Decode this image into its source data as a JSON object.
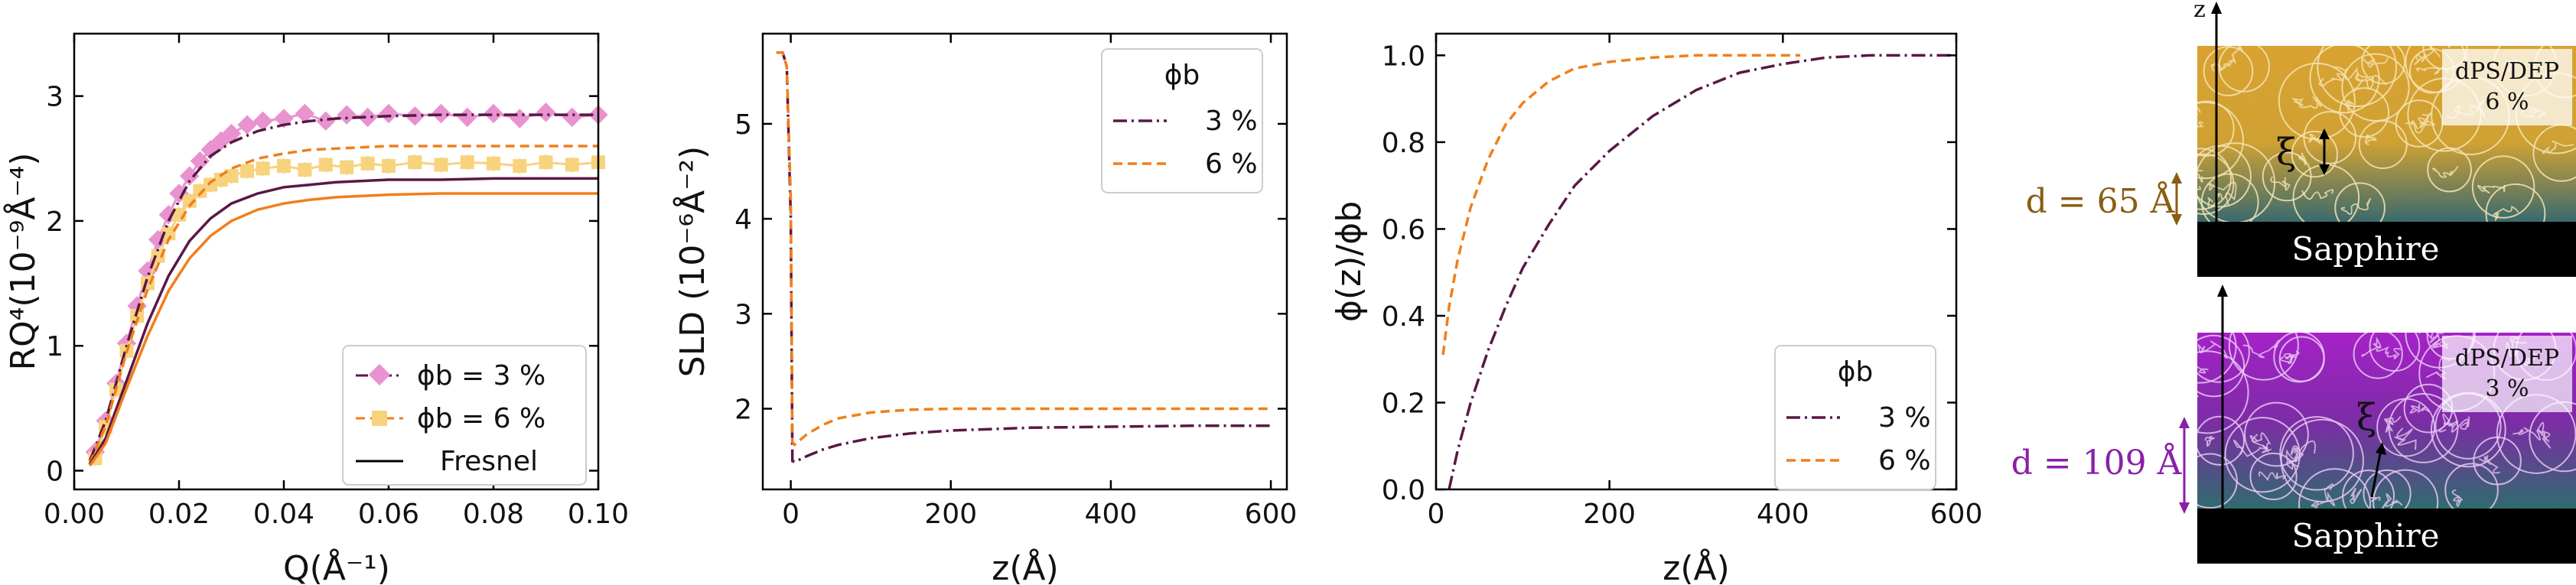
{
  "chart_data": [
    {
      "type": "scatter",
      "panel": "a",
      "xlabel": "Q(Å⁻¹)",
      "ylabel": "RQ⁴(10⁻⁹Å⁻⁴)",
      "xlim": [
        0.0,
        0.1
      ],
      "ylim": [
        -0.15,
        3.5
      ],
      "xticks": [
        "0.00",
        "0.02",
        "0.04",
        "0.06",
        "0.08",
        "0.10"
      ],
      "yticks": [
        "0",
        "1",
        "2",
        "3"
      ],
      "legend_position": "lower-right",
      "legend": [
        "ϕb = 3 %",
        "ϕb = 6 %",
        "Fresnel"
      ],
      "colors": {
        "pink_data": "#e893cf",
        "yellow_data": "#f7d37e",
        "purple": "#5a1846",
        "orange": "#f07f1c"
      },
      "series": [
        {
          "name": "ϕb = 3 %",
          "kind": "data",
          "x": [
            0.004,
            0.006,
            0.008,
            0.01,
            0.012,
            0.014,
            0.016,
            0.018,
            0.02,
            0.022,
            0.024,
            0.026,
            0.028,
            0.03,
            0.033,
            0.036,
            0.04,
            0.044,
            0.048,
            0.052,
            0.056,
            0.06,
            0.065,
            0.07,
            0.075,
            0.08,
            0.085,
            0.09,
            0.095,
            0.1
          ],
          "y": [
            0.15,
            0.4,
            0.7,
            1.02,
            1.32,
            1.6,
            1.85,
            2.05,
            2.22,
            2.36,
            2.48,
            2.57,
            2.64,
            2.7,
            2.77,
            2.8,
            2.82,
            2.86,
            2.8,
            2.85,
            2.83,
            2.86,
            2.84,
            2.86,
            2.83,
            2.86,
            2.82,
            2.87,
            2.83,
            2.85
          ]
        },
        {
          "name": "ϕb = 3 % fit",
          "kind": "fit",
          "x": [
            0.003,
            0.006,
            0.01,
            0.014,
            0.018,
            0.022,
            0.026,
            0.03,
            0.035,
            0.04,
            0.045,
            0.05,
            0.06,
            0.07,
            0.08,
            0.09,
            0.1
          ],
          "y": [
            0.08,
            0.4,
            1.0,
            1.55,
            2.0,
            2.32,
            2.52,
            2.63,
            2.72,
            2.77,
            2.8,
            2.82,
            2.84,
            2.85,
            2.85,
            2.85,
            2.85
          ]
        },
        {
          "name": "ϕb = 6 %",
          "kind": "data",
          "x": [
            0.004,
            0.006,
            0.008,
            0.01,
            0.012,
            0.014,
            0.016,
            0.018,
            0.02,
            0.022,
            0.024,
            0.026,
            0.028,
            0.03,
            0.033,
            0.036,
            0.04,
            0.044,
            0.048,
            0.052,
            0.056,
            0.06,
            0.065,
            0.07,
            0.075,
            0.08,
            0.085,
            0.09,
            0.095,
            0.1
          ],
          "y": [
            0.1,
            0.35,
            0.65,
            0.96,
            1.24,
            1.5,
            1.72,
            1.9,
            2.05,
            2.16,
            2.24,
            2.29,
            2.33,
            2.36,
            2.4,
            2.42,
            2.44,
            2.41,
            2.45,
            2.43,
            2.46,
            2.44,
            2.47,
            2.45,
            2.47,
            2.46,
            2.44,
            2.47,
            2.45,
            2.47
          ]
        },
        {
          "name": "ϕb = 6 % fit",
          "kind": "fit",
          "x": [
            0.003,
            0.006,
            0.01,
            0.014,
            0.018,
            0.022,
            0.026,
            0.03,
            0.035,
            0.04,
            0.045,
            0.05,
            0.06,
            0.07,
            0.08,
            0.09,
            0.1
          ],
          "y": [
            0.06,
            0.36,
            0.95,
            1.45,
            1.85,
            2.12,
            2.31,
            2.42,
            2.5,
            2.54,
            2.57,
            2.58,
            2.6,
            2.6,
            2.6,
            2.6,
            2.6
          ]
        },
        {
          "name": "Fresnel 3 %",
          "kind": "fresnel",
          "x": [
            0.003,
            0.006,
            0.01,
            0.014,
            0.018,
            0.022,
            0.026,
            0.03,
            0.035,
            0.04,
            0.045,
            0.05,
            0.06,
            0.07,
            0.08,
            0.09,
            0.1
          ],
          "y": [
            0.05,
            0.26,
            0.72,
            1.18,
            1.56,
            1.84,
            2.02,
            2.14,
            2.22,
            2.27,
            2.29,
            2.31,
            2.33,
            2.33,
            2.34,
            2.34,
            2.34
          ]
        },
        {
          "name": "Fresnel 6 %",
          "kind": "fresnel",
          "x": [
            0.003,
            0.006,
            0.01,
            0.014,
            0.018,
            0.022,
            0.026,
            0.03,
            0.035,
            0.04,
            0.045,
            0.05,
            0.06,
            0.07,
            0.08,
            0.09,
            0.1
          ],
          "y": [
            0.04,
            0.22,
            0.66,
            1.08,
            1.44,
            1.7,
            1.88,
            2.0,
            2.09,
            2.14,
            2.17,
            2.19,
            2.21,
            2.22,
            2.22,
            2.22,
            2.22
          ]
        }
      ]
    },
    {
      "type": "line",
      "panel": "b",
      "xlabel": "z(Å)",
      "ylabel": "SLD (10⁻⁶Å⁻²)",
      "xlim": [
        -35,
        620
      ],
      "ylim": [
        1.15,
        5.95
      ],
      "xticks": [
        "0",
        "200",
        "400",
        "600"
      ],
      "yticks": [
        "2",
        "3",
        "4",
        "5"
      ],
      "legend_title": "ϕb",
      "legend_position": "upper-right",
      "series": [
        {
          "name": "3 %",
          "color": "#5a1846",
          "dash": "dashdot",
          "x": [
            -18,
            -10,
            -5,
            0,
            2,
            5,
            10,
            20,
            40,
            60,
            100,
            150,
            200,
            300,
            400,
            500,
            600
          ],
          "y": [
            5.75,
            5.75,
            5.6,
            4.0,
            1.45,
            1.44,
            1.46,
            1.5,
            1.57,
            1.62,
            1.69,
            1.74,
            1.77,
            1.8,
            1.81,
            1.82,
            1.82
          ]
        },
        {
          "name": "6 %",
          "color": "#f07f1c",
          "dash": "dashed",
          "x": [
            -18,
            -10,
            -5,
            0,
            2,
            5,
            10,
            20,
            40,
            60,
            100,
            150,
            200,
            300,
            400,
            500,
            600
          ],
          "y": [
            5.75,
            5.75,
            5.6,
            4.2,
            1.65,
            1.62,
            1.66,
            1.73,
            1.83,
            1.9,
            1.96,
            1.99,
            2.0,
            2.0,
            2.0,
            2.0,
            2.0
          ]
        }
      ]
    },
    {
      "type": "line",
      "panel": "c",
      "xlabel": "z(Å)",
      "ylabel": "ϕ(z)/ϕb",
      "xlim": [
        0,
        600
      ],
      "ylim": [
        0.0,
        1.05
      ],
      "xticks": [
        "0",
        "200",
        "400",
        "600"
      ],
      "yticks": [
        "0.0",
        "0.2",
        "0.4",
        "0.6",
        "0.8",
        "1.0"
      ],
      "legend_title": "ϕb",
      "legend_position": "lower-right",
      "series": [
        {
          "name": "3 %",
          "color": "#5a1846",
          "dash": "dashdot",
          "x": [
            15,
            25,
            40,
            60,
            80,
            100,
            130,
            160,
            200,
            250,
            300,
            350,
            400,
            450,
            500,
            550,
            600
          ],
          "y": [
            0.0,
            0.09,
            0.2,
            0.32,
            0.42,
            0.51,
            0.61,
            0.7,
            0.78,
            0.86,
            0.92,
            0.96,
            0.98,
            0.995,
            1.0,
            1.0,
            1.0
          ]
        },
        {
          "name": "6 %",
          "color": "#f07f1c",
          "dash": "dashed",
          "x": [
            8,
            15,
            25,
            40,
            60,
            80,
            100,
            130,
            160,
            200,
            250,
            300,
            350,
            400,
            420
          ],
          "y": [
            0.31,
            0.42,
            0.53,
            0.65,
            0.76,
            0.84,
            0.89,
            0.94,
            0.97,
            0.985,
            0.995,
            1.0,
            1.0,
            1.0,
            1.0
          ]
        }
      ]
    }
  ],
  "schematic": {
    "axis_label": "z",
    "top": {
      "label": "dPS/DEP",
      "percent": "6 %",
      "xi": "ξ",
      "thickness": "d = 65 Å",
      "substrate": "Sapphire",
      "colors": {
        "film": "#d9a231",
        "thickness": "#8a5d12"
      }
    },
    "bottom": {
      "label": "dPS/DEP",
      "percent": "3 %",
      "xi": "ξ",
      "thickness": "d = 109 Å",
      "substrate": "Sapphire",
      "colors": {
        "film": "#a621c8",
        "thickness": "#8a1fa8"
      }
    }
  }
}
